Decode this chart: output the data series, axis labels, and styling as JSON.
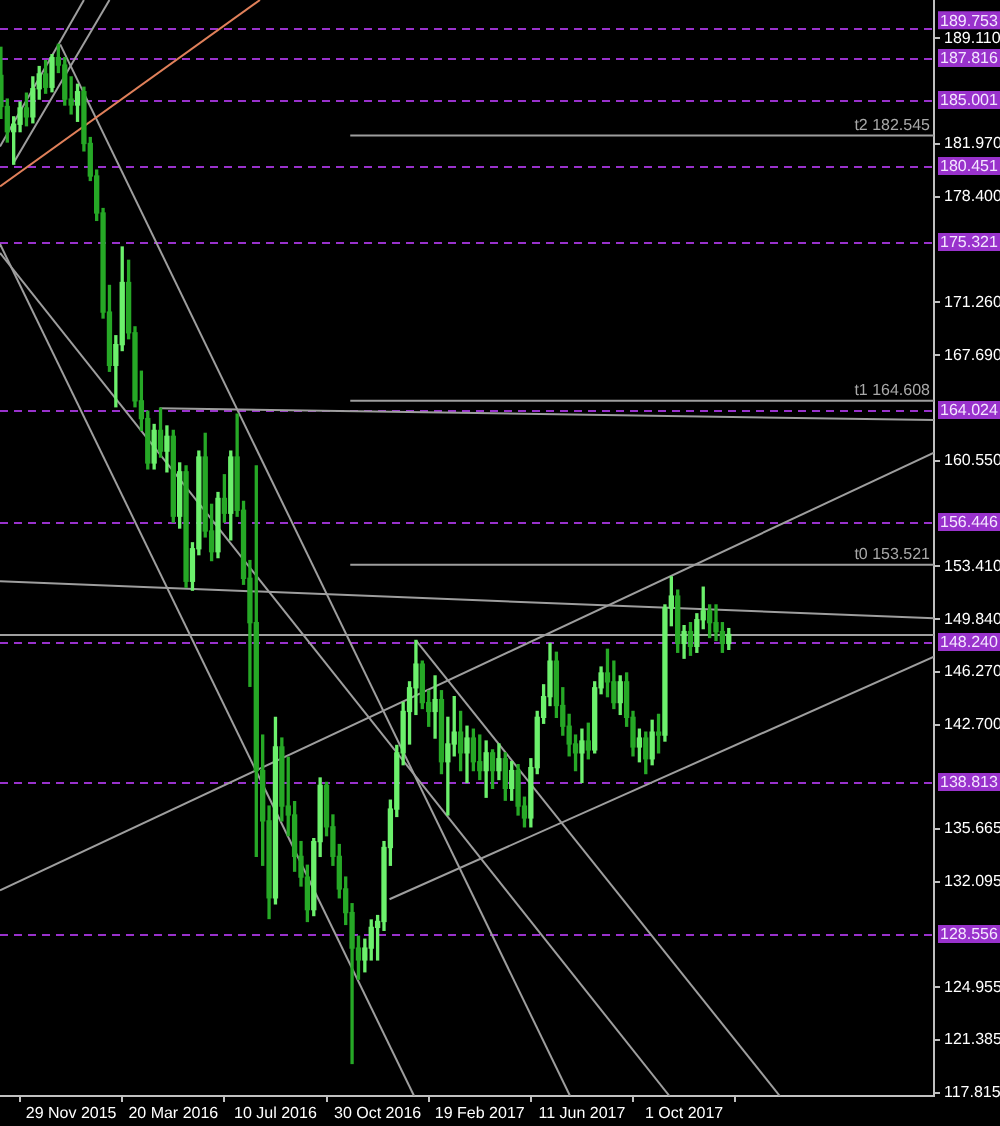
{
  "chart_data": {
    "type": "candlestick",
    "colors": [
      "#26a826",
      "#26a826",
      "#6cf06c",
      "#6cf06c",
      "#26a826",
      "#6cf06c",
      "#6cf06c",
      "#26a826",
      "#6cf06c",
      "#26a826",
      "#26a826",
      "#26a826",
      "#6cf06c",
      "#26a826",
      "#26a826",
      "#26a826",
      "#26a826",
      "#26a826",
      "#6cf06c",
      "#6cf06c",
      "#26a826",
      "#26a826",
      "#26a826",
      "#26a826",
      "#6cf06c",
      "#26a826",
      "#6cf06c",
      "#26a826",
      "#6cf06c",
      "#26a826",
      "#6cf06c",
      "#6cf06c",
      "#26a826",
      "#26a826",
      "#6cf06c",
      "#26a826",
      "#6cf06c",
      "#26a826",
      "#26a826",
      "#26a826",
      "#26a826",
      "#26a826",
      "#26a826",
      "#6cf06c",
      "#26a826",
      "#26a826",
      "#26a826",
      "#26a826",
      "#26a826",
      "#6cf06c",
      "#6cf06c",
      "#26a826",
      "#26a826",
      "#26a826",
      "#26a826",
      "#26a826",
      "#26a826",
      "#6cf06c",
      "#6cf06c",
      "#6cf06c",
      "#6cf06c",
      "#6cf06c",
      "#6cf06c",
      "#6cf06c",
      "#6cf06c",
      "#6cf06c",
      "#26a826",
      "#26a826",
      "#6cf06c",
      "#26a826",
      "#6cf06c",
      "#6cf06c",
      "#26a826",
      "#6cf06c",
      "#26a826",
      "#26a826",
      "#6cf06c",
      "#26a826",
      "#6cf06c",
      "#26a826",
      "#6cf06c",
      "#26a826",
      "#26a826",
      "#6cf06c",
      "#6cf06c",
      "#6cf06c",
      "#6cf06c",
      "#26a826",
      "#26a826",
      "#26a826",
      "#26a826",
      "#6cf06c",
      "#26a826",
      "#6cf06c",
      "#6cf06c",
      "#26a826",
      "#26a826",
      "#6cf06c",
      "#26a826",
      "#26a826",
      "#6cf06c",
      "#26a826",
      "#6cf06c",
      "#26a826",
      "#6cf06c",
      "#6cf06c",
      "#26a826",
      "#6cf06c",
      "#26a826",
      "#6cf06c",
      "#6cf06c",
      "#26a826",
      "#26a826",
      "#26a826",
      "#6cf06c"
    ],
    "x": [
      "2015-09-13",
      "2015-09-20",
      "2015-09-27",
      "2015-10-04",
      "2015-10-11",
      "2015-10-18",
      "2015-10-25",
      "2015-11-01",
      "2015-11-08",
      "2015-11-15",
      "2015-11-22",
      "2015-11-29",
      "2015-12-06",
      "2015-12-13",
      "2015-12-20",
      "2015-12-27",
      "2016-01-03",
      "2016-01-10",
      "2016-01-17",
      "2016-01-24",
      "2016-01-31",
      "2016-02-07",
      "2016-02-14",
      "2016-02-21",
      "2016-02-28",
      "2016-03-06",
      "2016-03-13",
      "2016-03-20",
      "2016-03-27",
      "2016-04-03",
      "2016-04-10",
      "2016-04-17",
      "2016-04-24",
      "2016-05-01",
      "2016-05-08",
      "2016-05-15",
      "2016-05-22",
      "2016-05-29",
      "2016-06-05",
      "2016-06-12",
      "2016-06-19",
      "2016-06-26",
      "2016-07-03",
      "2016-07-10",
      "2016-07-17",
      "2016-07-24",
      "2016-07-31",
      "2016-08-07",
      "2016-08-14",
      "2016-08-21",
      "2016-08-28",
      "2016-09-04",
      "2016-09-11",
      "2016-09-18",
      "2016-09-25",
      "2016-10-02",
      "2016-10-09",
      "2016-10-16",
      "2016-10-23",
      "2016-10-30",
      "2016-11-06",
      "2016-11-13",
      "2016-11-20",
      "2016-11-27",
      "2016-12-04",
      "2016-12-11",
      "2016-12-18",
      "2016-12-25",
      "2017-01-01",
      "2017-01-08",
      "2017-01-15",
      "2017-01-22",
      "2017-01-29",
      "2017-02-05",
      "2017-02-12",
      "2017-02-19",
      "2017-02-26",
      "2017-03-05",
      "2017-03-12",
      "2017-03-19",
      "2017-03-26",
      "2017-04-02",
      "2017-04-09",
      "2017-04-16",
      "2017-04-23",
      "2017-04-30",
      "2017-05-07",
      "2017-05-14",
      "2017-05-21",
      "2017-05-28",
      "2017-06-04",
      "2017-06-11",
      "2017-06-18",
      "2017-06-25",
      "2017-07-02",
      "2017-07-09",
      "2017-07-16",
      "2017-07-23",
      "2017-07-30",
      "2017-08-06",
      "2017-08-13",
      "2017-08-20",
      "2017-08-27",
      "2017-09-03",
      "2017-09-10",
      "2017-09-17",
      "2017-09-24",
      "2017-10-01",
      "2017-10-08",
      "2017-10-15",
      "2017-10-22",
      "2017-10-29",
      "2017-11-05",
      "2017-11-12",
      "2017-11-19"
    ],
    "ohlc": [
      [
        186.6,
        188.5,
        183.7,
        184.5
      ],
      [
        184.5,
        185.0,
        182.1,
        182.8
      ],
      [
        182.8,
        183.8,
        180.6,
        183.3
      ],
      [
        183.3,
        184.8,
        182.8,
        184.4
      ],
      [
        184.4,
        185.4,
        183.2,
        183.8
      ],
      [
        183.8,
        186.5,
        183.4,
        185.7
      ],
      [
        185.7,
        187.2,
        185.0,
        186.7
      ],
      [
        186.7,
        187.6,
        185.4,
        185.8
      ],
      [
        185.8,
        188.0,
        185.5,
        187.8
      ],
      [
        187.8,
        188.7,
        186.8,
        187.3
      ],
      [
        187.3,
        187.8,
        184.6,
        185.0
      ],
      [
        185.0,
        186.5,
        184.0,
        184.6
      ],
      [
        184.6,
        186.0,
        183.5,
        185.5
      ],
      [
        185.5,
        185.8,
        181.5,
        182.0
      ],
      [
        182.0,
        182.4,
        179.5,
        179.8
      ],
      [
        179.8,
        180.2,
        176.8,
        177.3
      ],
      [
        177.3,
        177.6,
        170.2,
        170.6
      ],
      [
        170.6,
        172.4,
        166.6,
        167.0
      ],
      [
        167.0,
        169.0,
        164.2,
        168.4
      ],
      [
        168.4,
        175.0,
        168.0,
        172.6
      ],
      [
        172.6,
        174.1,
        168.8,
        169.2
      ],
      [
        169.2,
        169.6,
        164.2,
        164.6
      ],
      [
        164.6,
        166.6,
        162.6,
        163.4
      ],
      [
        163.4,
        163.9,
        160.0,
        160.4
      ],
      [
        160.4,
        163.0,
        160.0,
        162.6
      ],
      [
        162.6,
        164.1,
        160.8,
        161.2
      ],
      [
        161.2,
        162.9,
        159.8,
        162.2
      ],
      [
        162.2,
        162.6,
        156.4,
        156.8
      ],
      [
        156.8,
        160.4,
        156.0,
        159.8
      ],
      [
        159.8,
        160.2,
        152.0,
        152.4
      ],
      [
        152.4,
        155.0,
        151.8,
        154.6
      ],
      [
        154.6,
        161.2,
        154.2,
        160.8
      ],
      [
        160.8,
        162.4,
        155.4,
        155.8
      ],
      [
        155.8,
        157.6,
        153.8,
        154.4
      ],
      [
        154.4,
        158.4,
        154.0,
        158.0
      ],
      [
        158.0,
        159.6,
        156.4,
        157.0
      ],
      [
        157.0,
        161.2,
        155.2,
        160.8
      ],
      [
        160.8,
        163.7,
        156.8,
        157.2
      ],
      [
        157.2,
        157.8,
        152.2,
        152.6
      ],
      [
        152.6,
        153.8,
        145.3,
        149.6
      ],
      [
        149.6,
        160.2,
        133.8,
        139.6
      ],
      [
        139.6,
        142.0,
        133.2,
        136.2
      ],
      [
        136.2,
        137.2,
        129.6,
        131.0
      ],
      [
        131.0,
        143.2,
        130.6,
        141.2
      ],
      [
        141.2,
        141.8,
        136.2,
        137.2
      ],
      [
        137.2,
        140.5,
        135.2,
        136.6
      ],
      [
        136.6,
        137.5,
        132.8,
        133.8
      ],
      [
        133.8,
        134.8,
        131.8,
        132.4
      ],
      [
        132.4,
        133.2,
        129.4,
        130.2
      ],
      [
        130.2,
        135.0,
        129.8,
        134.8
      ],
      [
        134.8,
        139.1,
        133.8,
        138.6
      ],
      [
        138.6,
        138.8,
        135.2,
        135.8
      ],
      [
        135.8,
        136.6,
        133.2,
        133.8
      ],
      [
        133.8,
        134.6,
        131.0,
        131.6
      ],
      [
        131.6,
        132.4,
        129.2,
        130.0
      ],
      [
        130.0,
        130.6,
        119.8,
        127.6
      ],
      [
        127.6,
        128.4,
        125.5,
        126.8
      ],
      [
        126.8,
        128.2,
        126.0,
        127.6
      ],
      [
        127.6,
        129.5,
        126.8,
        129.0
      ],
      [
        129.0,
        129.8,
        126.8,
        129.4
      ],
      [
        129.4,
        134.8,
        128.8,
        134.4
      ],
      [
        134.4,
        137.6,
        133.2,
        137.0
      ],
      [
        137.0,
        141.3,
        136.5,
        140.8
      ],
      [
        140.8,
        144.2,
        140.0,
        143.6
      ],
      [
        143.6,
        145.6,
        141.4,
        145.2
      ],
      [
        145.2,
        148.4,
        143.4,
        146.8
      ],
      [
        146.8,
        147.0,
        143.8,
        144.2
      ],
      [
        144.2,
        145.0,
        142.6,
        143.6
      ],
      [
        143.6,
        146.0,
        141.8,
        144.4
      ],
      [
        144.4,
        145.0,
        139.4,
        140.2
      ],
      [
        140.2,
        143.2,
        136.6,
        141.4
      ],
      [
        141.4,
        144.6,
        140.6,
        142.2
      ],
      [
        142.2,
        143.6,
        139.6,
        140.8
      ],
      [
        140.8,
        142.6,
        138.8,
        141.8
      ],
      [
        141.8,
        142.4,
        139.6,
        140.2
      ],
      [
        140.2,
        142.0,
        139.0,
        139.6
      ],
      [
        139.6,
        141.6,
        137.8,
        140.8
      ],
      [
        140.8,
        141.0,
        138.4,
        139.6
      ],
      [
        139.6,
        141.4,
        139.0,
        140.4
      ],
      [
        140.4,
        140.8,
        137.6,
        138.4
      ],
      [
        138.4,
        140.2,
        137.6,
        139.6
      ],
      [
        139.6,
        140.0,
        136.6,
        137.2
      ],
      [
        137.2,
        137.8,
        135.8,
        136.4
      ],
      [
        136.4,
        140.4,
        135.8,
        139.8
      ],
      [
        139.8,
        143.6,
        139.4,
        143.2
      ],
      [
        143.2,
        145.4,
        142.8,
        144.6
      ],
      [
        144.6,
        148.2,
        144.0,
        147.0
      ],
      [
        147.0,
        147.6,
        143.2,
        144.0
      ],
      [
        144.0,
        145.2,
        142.0,
        142.6
      ],
      [
        142.6,
        143.4,
        140.6,
        141.4
      ],
      [
        141.4,
        142.0,
        139.6,
        140.8
      ],
      [
        140.8,
        142.4,
        138.8,
        141.6
      ],
      [
        141.6,
        142.8,
        140.4,
        141.0
      ],
      [
        141.0,
        145.6,
        140.8,
        145.2
      ],
      [
        145.2,
        146.6,
        144.8,
        146.2
      ],
      [
        146.2,
        147.8,
        144.6,
        145.6
      ],
      [
        145.6,
        147.0,
        143.8,
        144.2
      ],
      [
        144.2,
        146.0,
        143.4,
        145.6
      ],
      [
        145.6,
        146.2,
        142.6,
        143.2
      ],
      [
        143.2,
        143.6,
        140.6,
        141.2
      ],
      [
        141.2,
        142.4,
        140.2,
        141.8
      ],
      [
        141.8,
        142.2,
        139.4,
        140.4
      ],
      [
        140.4,
        143.0,
        140.0,
        142.2
      ],
      [
        142.2,
        143.4,
        140.8,
        142.0
      ],
      [
        142.0,
        150.8,
        141.6,
        150.6
      ],
      [
        150.6,
        152.7,
        149.4,
        151.4
      ],
      [
        151.4,
        151.8,
        147.6,
        148.2
      ],
      [
        148.2,
        149.4,
        147.2,
        149.0
      ],
      [
        149.0,
        149.6,
        147.4,
        148.0
      ],
      [
        148.0,
        150.2,
        147.6,
        149.8
      ],
      [
        149.8,
        152.0,
        149.2,
        150.4
      ],
      [
        150.4,
        150.8,
        148.6,
        149.6
      ],
      [
        149.6,
        150.8,
        148.4,
        149.0
      ],
      [
        149.0,
        149.6,
        147.6,
        148.2
      ],
      [
        148.2,
        149.2,
        147.8,
        148.8
      ]
    ],
    "series": [
      {
        "type": "line",
        "color": "#e0805a",
        "x": [
          "2015-09-12",
          "2016-06-23"
        ],
        "values": [
          179.1,
          191.7
        ]
      },
      {
        "type": "line",
        "color": "#9e9e9e",
        "x": [
          "2015-09-12",
          "2015-12-13"
        ],
        "values": [
          181.8,
          191.7
        ]
      },
      {
        "type": "line",
        "color": "#9e9e9e",
        "x": [
          "2015-09-26",
          "2016-01-10"
        ],
        "values": [
          180.6,
          191.7
        ]
      },
      {
        "type": "line",
        "color": "#9e9e9e",
        "x": [
          "2015-11-17",
          "2017-05-29"
        ],
        "values": [
          188.7,
          117.6
        ]
      },
      {
        "type": "line",
        "color": "#9e9e9e",
        "x": [
          "2015-09-12",
          "2016-12-09"
        ],
        "values": [
          175.2,
          117.6
        ]
      },
      {
        "type": "line",
        "color": "#9e9e9e",
        "x": [
          "2015-09-12",
          "2017-09-15"
        ],
        "values": [
          174.6,
          117.6
        ]
      },
      {
        "type": "line",
        "color": "#9e9e9e",
        "x": [
          "2016-12-11",
          "2018-01-14"
        ],
        "values": [
          148.4,
          117.6
        ]
      },
      {
        "type": "line",
        "color": "#9e9e9e",
        "x": [
          "2015-09-12",
          "2018-07-02"
        ],
        "values": [
          131.5,
          161.1
        ]
      },
      {
        "type": "line",
        "color": "#9e9e9e",
        "x": [
          "2016-11-12",
          "2018-07-02"
        ],
        "values": [
          130.9,
          147.3
        ]
      },
      {
        "type": "line",
        "color": "#9e9e9e",
        "x": [
          "2015-09-12",
          "2018-07-02"
        ],
        "values": [
          152.4,
          149.9
        ]
      },
      {
        "type": "line",
        "color": "#9e9e9e",
        "x": [
          "2016-03-05",
          "2018-07-02"
        ],
        "values": [
          164.1,
          163.3
        ]
      },
      {
        "type": "line",
        "color": "#9e9e9e",
        "x": [
          "2016-09-30",
          "2018-07-02"
        ],
        "values": [
          182.545,
          182.545
        ]
      },
      {
        "type": "line",
        "color": "#9e9e9e",
        "x": [
          "2016-09-30",
          "2018-07-02"
        ],
        "values": [
          164.608,
          164.608
        ]
      },
      {
        "type": "line",
        "color": "#9e9e9e",
        "x": [
          "2016-09-30",
          "2018-07-02"
        ],
        "values": [
          153.521,
          153.521
        ]
      }
    ],
    "annotations": [
      {
        "text": "t2 182.545",
        "x": "2018-07-02",
        "y": 182.545
      },
      {
        "text": "t1 164.608",
        "x": "2018-07-02",
        "y": 164.608
      },
      {
        "text": "t0 153.521",
        "x": "2018-07-02",
        "y": 153.521
      }
    ],
    "ref_lines": [
      {
        "axis": "y",
        "value": 189.753,
        "label": "189.753",
        "color": "#9932cc",
        "line_style": "dashed"
      },
      {
        "axis": "y",
        "value": 187.816,
        "label": "187.816",
        "color": "#9932cc",
        "line_style": "dashed"
      },
      {
        "axis": "y",
        "value": 185.001,
        "label": "185.001",
        "color": "#9932cc",
        "line_style": "dashed"
      },
      {
        "axis": "y",
        "value": 180.451,
        "label": "180.451",
        "color": "#9932cc",
        "line_style": "dashed"
      },
      {
        "axis": "y",
        "value": 175.321,
        "label": "175.321",
        "color": "#9932cc",
        "line_style": "dashed"
      },
      {
        "axis": "y",
        "value": 164.024,
        "label": "164.024",
        "color": "#9932cc",
        "line_style": "dashed"
      },
      {
        "axis": "y",
        "value": 156.446,
        "label": "156.446",
        "color": "#9932cc",
        "line_style": "dashed"
      },
      {
        "axis": "y",
        "value": 148.24,
        "label": "148.240",
        "color": "#9932cc",
        "line_style": "dashed"
      },
      {
        "axis": "y",
        "value": 138.813,
        "label": "138.813",
        "color": "#9932cc",
        "line_style": "dashed"
      },
      {
        "axis": "y",
        "value": 128.556,
        "label": "128.556",
        "color": "#9932cc",
        "line_style": "dashed"
      },
      {
        "axis": "y",
        "value": 148.8,
        "color": "#a0a0a0",
        "line_style": "solid"
      }
    ],
    "xlim": [
      "2015-09-12",
      "2018-07-02"
    ],
    "xticks": [
      {
        "value": "2015-11-29",
        "label": "29 Nov 2015"
      },
      {
        "value": "2016-03-20",
        "label": "20 Mar 2016"
      },
      {
        "value": "2016-07-10",
        "label": "10 Jul 2016"
      },
      {
        "value": "2016-10-30",
        "label": "30 Oct 2016"
      },
      {
        "value": "2017-02-19",
        "label": "19 Feb 2017"
      },
      {
        "value": "2017-06-11",
        "label": "11 Jun 2017"
      },
      {
        "value": "2017-10-01",
        "label": "1 Oct 2017"
      }
    ],
    "ylim": [
      117.6,
      191.7
    ],
    "yticks": [
      {
        "value": 189.11,
        "label": "189.110"
      },
      {
        "value": 181.97,
        "label": "181.970"
      },
      {
        "value": 178.4,
        "label": "178.400"
      },
      {
        "value": 171.26,
        "label": "171.260"
      },
      {
        "value": 167.69,
        "label": "167.690"
      },
      {
        "value": 160.55,
        "label": "160.550"
      },
      {
        "value": 153.41,
        "label": "153.410"
      },
      {
        "value": 149.84,
        "label": "149.840"
      },
      {
        "value": 146.27,
        "label": "146.270"
      },
      {
        "value": 142.7,
        "label": "142.700"
      },
      135.665,
      132.095,
      124.955,
      121.385,
      117.815
    ]
  }
}
